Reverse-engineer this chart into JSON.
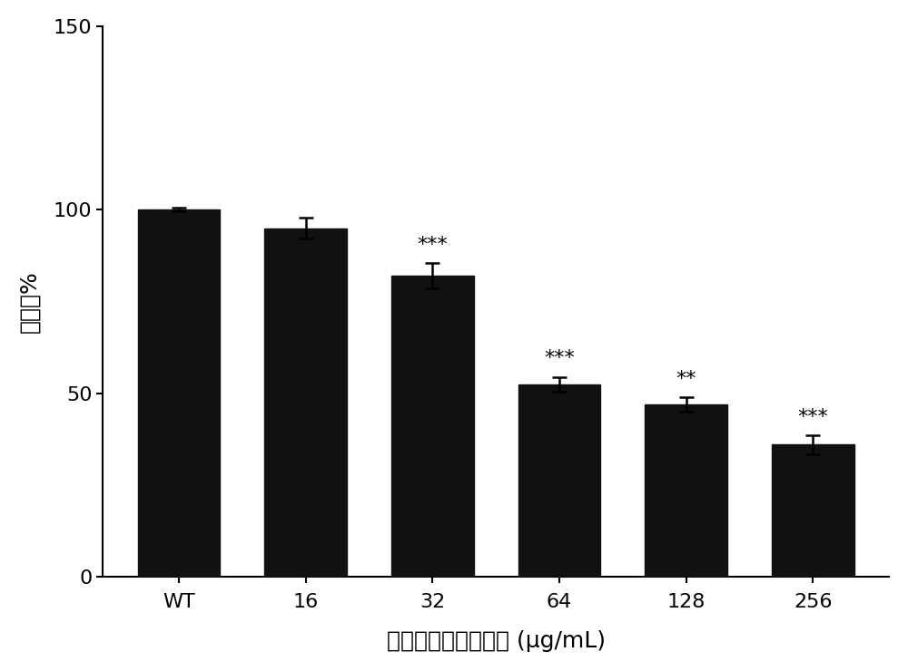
{
  "categories": [
    "WT",
    "16",
    "32",
    "64",
    "128",
    "256"
  ],
  "values": [
    100.0,
    95.0,
    82.0,
    52.5,
    47.0,
    36.0
  ],
  "errors": [
    0.5,
    2.8,
    3.5,
    2.0,
    2.0,
    2.5
  ],
  "significance": [
    "",
    "",
    "***",
    "***",
    "**",
    "***"
  ],
  "bar_color": "#111111",
  "bar_width": 0.65,
  "ylim": [
    0,
    150
  ],
  "yticks": [
    0,
    50,
    100,
    150
  ],
  "ylabel": "粘附率%",
  "xlabel": "穗花杉双黄酮的浓度 (μg/mL)",
  "xlabel_fontsize": 18,
  "ylabel_fontsize": 18,
  "tick_fontsize": 16,
  "sig_fontsize": 16,
  "background_color": "#ffffff",
  "error_cap_size": 6,
  "error_linewidth": 1.8
}
